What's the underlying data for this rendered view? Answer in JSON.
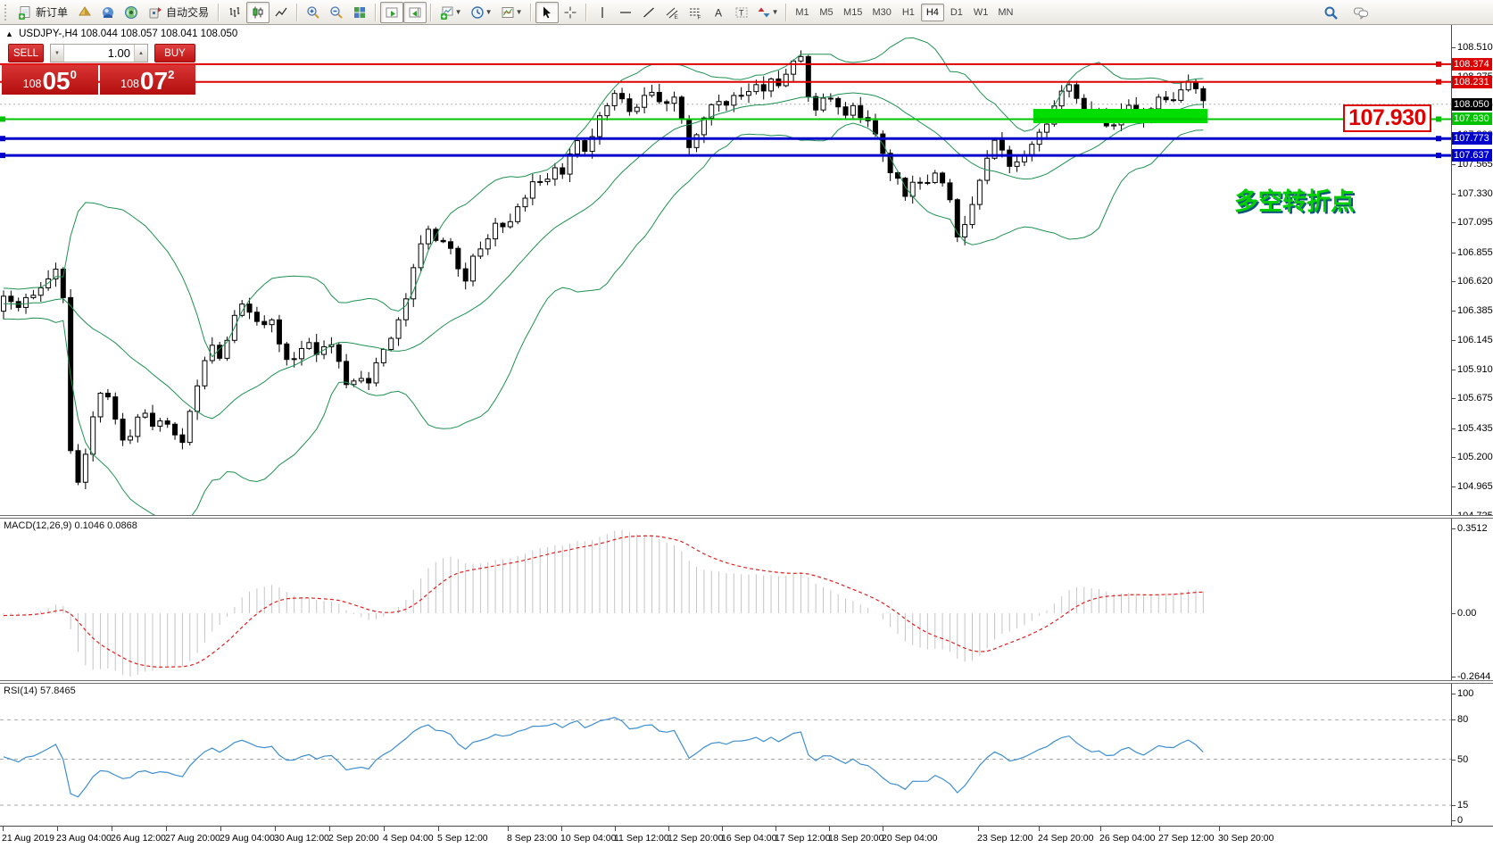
{
  "toolbar": {
    "new_order_label": "新订单",
    "autotrading_label": "自动交易",
    "timeframes": [
      "M1",
      "M5",
      "M15",
      "M30",
      "H1",
      "H4",
      "D1",
      "W1",
      "MN"
    ],
    "active_timeframe": "H4"
  },
  "header": {
    "direction_arrow": "▲",
    "symbol": "USDJPY-,H4",
    "ohlc": "108.044 108.057 108.041 108.050"
  },
  "trade_panel": {
    "sell_label": "SELL",
    "buy_label": "BUY",
    "volume": "1.00",
    "spin_down": "▼",
    "spin_up": "▲",
    "sell_price": {
      "prefix": "108",
      "big": "05",
      "sup": "0"
    },
    "buy_price": {
      "prefix": "108",
      "big": "07",
      "sup": "2"
    }
  },
  "price_axis": {
    "ticks": [
      "108.510",
      "108.275",
      "108.040",
      "107.800",
      "107.565",
      "107.330",
      "107.095",
      "106.855",
      "106.620",
      "106.385",
      "106.145",
      "105.910",
      "105.675",
      "105.435",
      "105.200",
      "104.965",
      "104.725"
    ],
    "current_price": {
      "value": "108.050",
      "bg": "#000000"
    },
    "levels": [
      {
        "value": "108.374",
        "color": "#dd0000",
        "width": 2
      },
      {
        "value": "108.231",
        "color": "#dd0000",
        "width": 2
      },
      {
        "value": "107.930",
        "color": "#00c400",
        "width": 2
      },
      {
        "value": "107.773",
        "color": "#0000cc",
        "width": 3
      },
      {
        "value": "107.637",
        "color": "#0000cc",
        "width": 3
      }
    ]
  },
  "annotations": {
    "box_text": "107.930",
    "turning_point_text": "多空转折点",
    "highlight_color": "#00dd00"
  },
  "macd": {
    "title": "MACD(12,26,9)",
    "values": "0.1046 0.0868",
    "ticks": [
      [
        "0.3512",
        592
      ],
      [
        "0.00",
        687
      ],
      [
        "-0.2644",
        758
      ]
    ]
  },
  "rsi": {
    "title": "RSI(14)",
    "value": "57.8465",
    "ticks": [
      [
        "100",
        777
      ],
      [
        "80",
        806
      ],
      [
        "50",
        851
      ],
      [
        "15",
        902
      ],
      [
        "0",
        919
      ]
    ],
    "levels": [
      80,
      50,
      15
    ]
  },
  "time_axis": {
    "labels": [
      [
        "21 Aug 2019",
        2
      ],
      [
        "23 Aug 04:00",
        63
      ],
      [
        "26 Aug 12:00",
        124
      ],
      [
        "27 Aug 20:00",
        185
      ],
      [
        "29 Aug 04:00",
        246
      ],
      [
        "30 Aug 12:00",
        307
      ],
      [
        "2 Sep 20:00",
        368
      ],
      [
        "4 Sep 04:00",
        429
      ],
      [
        "5 Sep 12:00",
        490
      ],
      [
        "8 Sep 23:00",
        568
      ],
      [
        "10 Sep 04:00",
        628
      ],
      [
        "11 Sep 12:00",
        688
      ],
      [
        "12 Sep 20:00",
        748
      ],
      [
        "16 Sep 04:00",
        808
      ],
      [
        "17 Sep 12:00",
        868
      ],
      [
        "18 Sep 20:00",
        928
      ],
      [
        "20 Sep 04:00",
        988
      ],
      [
        "23 Sep 12:00",
        1095
      ],
      [
        "24 Sep 20:00",
        1163
      ],
      [
        "26 Sep 04:00",
        1232
      ],
      [
        "27 Sep 12:00",
        1298
      ],
      [
        "30 Sep 20:00",
        1365
      ]
    ]
  },
  "chart_data": {
    "type": "candlestick",
    "symbol": "USDJPY-",
    "timeframe": "H4",
    "bid": 108.05,
    "ask": 108.072,
    "price_range": [
      104.725,
      108.67
    ],
    "visible_price_levels": [
      108.374,
      108.231,
      108.05,
      107.93,
      107.773,
      107.637
    ],
    "indicators": [
      {
        "name": "Bollinger Bands",
        "params": [
          20,
          2
        ],
        "color": "#1e9150"
      },
      {
        "name": "MACD",
        "params": [
          12,
          26,
          9
        ],
        "current": [
          0.1046,
          0.0868
        ],
        "range": [
          -0.2644,
          0.3512
        ],
        "histogram_color": "#c4c4c4",
        "signal_color": "#e02020"
      },
      {
        "name": "RSI",
        "params": [
          14
        ],
        "current": 57.8465,
        "range": [
          0,
          100
        ],
        "levels": [
          80,
          50,
          15
        ],
        "color": "#3e8ed0"
      }
    ],
    "colors": {
      "bull": "#ffffff",
      "bear": "#000000",
      "outline": "#000000"
    },
    "candle_spacing_px": 8.35,
    "close_path": [
      [
        0,
        106.5
      ],
      [
        22,
        106.42
      ],
      [
        45,
        106.58
      ],
      [
        62,
        106.72
      ],
      [
        70,
        106.6
      ],
      [
        78,
        105.3
      ],
      [
        84,
        104.95
      ],
      [
        92,
        105.05
      ],
      [
        100,
        105.45
      ],
      [
        108,
        105.62
      ],
      [
        116,
        105.8
      ],
      [
        128,
        105.52
      ],
      [
        140,
        105.3
      ],
      [
        150,
        105.45
      ],
      [
        160,
        105.6
      ],
      [
        170,
        105.42
      ],
      [
        180,
        105.5
      ],
      [
        192,
        105.44
      ],
      [
        204,
        105.32
      ],
      [
        214,
        105.58
      ],
      [
        226,
        105.88
      ],
      [
        236,
        106.12
      ],
      [
        248,
        105.95
      ],
      [
        258,
        106.28
      ],
      [
        268,
        106.45
      ],
      [
        280,
        106.38
      ],
      [
        292,
        106.22
      ],
      [
        302,
        106.35
      ],
      [
        312,
        106.12
      ],
      [
        322,
        105.96
      ],
      [
        334,
        106.05
      ],
      [
        346,
        106.12
      ],
      [
        356,
        106.0
      ],
      [
        368,
        106.15
      ],
      [
        380,
        105.95
      ],
      [
        392,
        105.74
      ],
      [
        402,
        105.86
      ],
      [
        414,
        105.8
      ],
      [
        424,
        106.0
      ],
      [
        436,
        106.12
      ],
      [
        448,
        106.35
      ],
      [
        458,
        106.55
      ],
      [
        468,
        106.88
      ],
      [
        478,
        107.05
      ],
      [
        490,
        106.92
      ],
      [
        500,
        106.98
      ],
      [
        510,
        106.8
      ],
      [
        520,
        106.6
      ],
      [
        532,
        106.85
      ],
      [
        544,
        106.92
      ],
      [
        556,
        107.1
      ],
      [
        566,
        107.02
      ],
      [
        578,
        107.18
      ],
      [
        590,
        107.32
      ],
      [
        600,
        107.46
      ],
      [
        610,
        107.4
      ],
      [
        620,
        107.56
      ],
      [
        630,
        107.46
      ],
      [
        640,
        107.7
      ],
      [
        650,
        107.76
      ],
      [
        658,
        107.62
      ],
      [
        668,
        107.9
      ],
      [
        678,
        108.02
      ],
      [
        688,
        108.16
      ],
      [
        698,
        108.08
      ],
      [
        708,
        107.96
      ],
      [
        718,
        108.06
      ],
      [
        728,
        108.16
      ],
      [
        738,
        108.08
      ],
      [
        748,
        108.04
      ],
      [
        758,
        108.16
      ],
      [
        766,
        107.82
      ],
      [
        774,
        107.64
      ],
      [
        784,
        107.88
      ],
      [
        794,
        108.02
      ],
      [
        804,
        108.1
      ],
      [
        814,
        108.05
      ],
      [
        824,
        108.16
      ],
      [
        834,
        108.1
      ],
      [
        844,
        108.2
      ],
      [
        854,
        108.16
      ],
      [
        864,
        108.26
      ],
      [
        874,
        108.2
      ],
      [
        884,
        108.32
      ],
      [
        894,
        108.46
      ],
      [
        902,
        108.4
      ],
      [
        908,
        107.94
      ],
      [
        916,
        108.02
      ],
      [
        926,
        108.12
      ],
      [
        936,
        108.05
      ],
      [
        946,
        107.96
      ],
      [
        956,
        108.02
      ],
      [
        966,
        107.95
      ],
      [
        976,
        107.9
      ],
      [
        986,
        107.72
      ],
      [
        996,
        107.52
      ],
      [
        1006,
        107.44
      ],
      [
        1016,
        107.3
      ],
      [
        1026,
        107.46
      ],
      [
        1036,
        107.35
      ],
      [
        1046,
        107.52
      ],
      [
        1056,
        107.42
      ],
      [
        1064,
        107.28
      ],
      [
        1072,
        106.98
      ],
      [
        1080,
        107.08
      ],
      [
        1090,
        107.25
      ],
      [
        1100,
        107.48
      ],
      [
        1110,
        107.68
      ],
      [
        1118,
        107.78
      ],
      [
        1126,
        107.62
      ],
      [
        1134,
        107.52
      ],
      [
        1142,
        107.6
      ],
      [
        1150,
        107.68
      ],
      [
        1158,
        107.75
      ],
      [
        1166,
        107.82
      ],
      [
        1174,
        107.92
      ],
      [
        1182,
        108.05
      ],
      [
        1190,
        108.18
      ],
      [
        1198,
        108.22
      ],
      [
        1206,
        108.1
      ],
      [
        1214,
        108.0
      ],
      [
        1222,
        107.92
      ],
      [
        1230,
        107.98
      ],
      [
        1238,
        107.9
      ],
      [
        1246,
        107.86
      ],
      [
        1254,
        107.95
      ],
      [
        1262,
        108.05
      ],
      [
        1270,
        107.98
      ],
      [
        1278,
        107.92
      ],
      [
        1286,
        107.96
      ],
      [
        1294,
        108.05
      ],
      [
        1302,
        108.12
      ],
      [
        1310,
        108.05
      ],
      [
        1318,
        108.1
      ],
      [
        1326,
        108.22
      ],
      [
        1334,
        108.25
      ],
      [
        1342,
        108.18
      ],
      [
        1350,
        108.05
      ]
    ]
  }
}
